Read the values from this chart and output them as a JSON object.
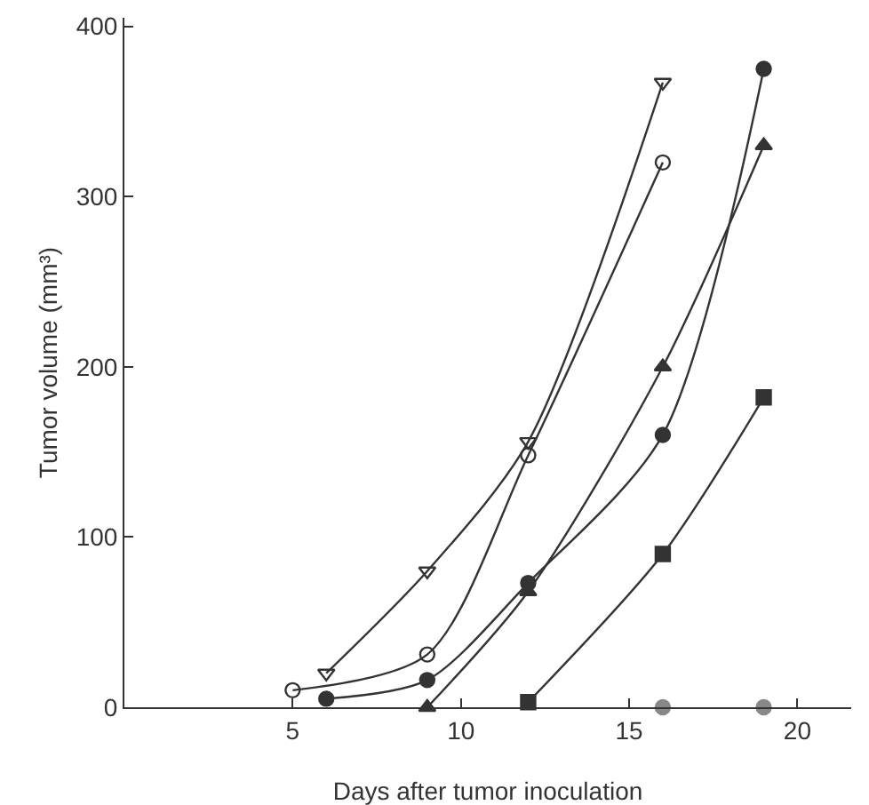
{
  "chart_data": {
    "type": "line",
    "xlabel": "Days after tumor inoculation",
    "ylabel": "Tumor volume (mm³)",
    "xlim": [
      0,
      21.6
    ],
    "ylim": [
      0,
      405
    ],
    "xticks": [
      5,
      10,
      15,
      20
    ],
    "yticks": [
      0,
      100,
      200,
      300,
      400
    ],
    "grid": false,
    "line_style": "solid",
    "series": [
      {
        "color": "#333333",
        "marker": "triangle-down-open",
        "x": [
          6,
          9,
          12,
          16
        ],
        "values": [
          20,
          80,
          156,
          367
        ]
      },
      {
        "color": "#333333",
        "marker": "circle-open",
        "x": [
          5,
          9,
          12,
          16
        ],
        "values": [
          10,
          31,
          148,
          320
        ]
      },
      {
        "color": "#333333",
        "marker": "circle",
        "x": [
          6,
          9,
          12,
          16,
          19
        ],
        "values": [
          5,
          16,
          73,
          160,
          375
        ]
      },
      {
        "color": "#333333",
        "marker": "triangle",
        "x": [
          9,
          12,
          16,
          19
        ],
        "values": [
          0,
          68,
          200,
          330
        ]
      },
      {
        "color": "#333333",
        "marker": "square",
        "x": [
          12,
          16,
          19
        ],
        "values": [
          3,
          90,
          182
        ]
      },
      {
        "type": "scatter",
        "color": "#888888",
        "marker": "circle",
        "x": [
          16,
          19
        ],
        "values": [
          0,
          0
        ]
      }
    ]
  }
}
